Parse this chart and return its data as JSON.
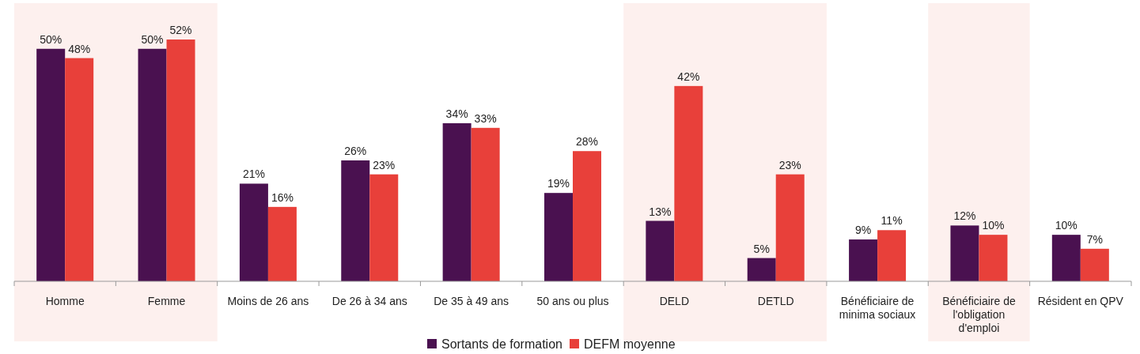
{
  "chart_data": {
    "type": "bar",
    "categories": [
      "Homme",
      "Femme",
      "Moins de 26 ans",
      "De 26 à 34 ans",
      "De 35 à 49 ans",
      "50 ans ou plus",
      "DELD",
      "DETLD",
      "Bénéficiaire de minima sociaux",
      "Bénéficiaire de l'obligation d'emploi",
      "Résident en QPV"
    ],
    "series": [
      {
        "name": "Sortants de formation",
        "color": "#4a1150",
        "values": [
          50,
          50,
          21,
          26,
          34,
          19,
          13,
          5,
          9,
          12,
          10
        ],
        "value_labels": [
          "50%",
          "50%",
          "21%",
          "26%",
          "34%",
          "19%",
          "13%",
          "5%",
          "9%",
          "12%",
          "10%"
        ]
      },
      {
        "name": "DEFM moyenne",
        "color": "#e8403a",
        "values": [
          48,
          52,
          16,
          23,
          33,
          28,
          42,
          23,
          11,
          10,
          7
        ],
        "value_labels": [
          "48%",
          "52%",
          "16%",
          "23%",
          "33%",
          "28%",
          "42%",
          "23%",
          "11%",
          "10%",
          "7%"
        ]
      }
    ],
    "bands": [
      {
        "axis": "x",
        "from": "Homme",
        "to": "Femme",
        "color": "#fdf0ee"
      },
      {
        "axis": "x",
        "from": "DELD",
        "to": "DETLD",
        "color": "#fdf0ee"
      },
      {
        "axis": "x",
        "from": "Bénéficiaire de l'obligation d'emploi",
        "to": "Bénéficiaire de l'obligation d'emploi",
        "color": "#fdf0ee"
      }
    ],
    "legend": "bottom"
  }
}
